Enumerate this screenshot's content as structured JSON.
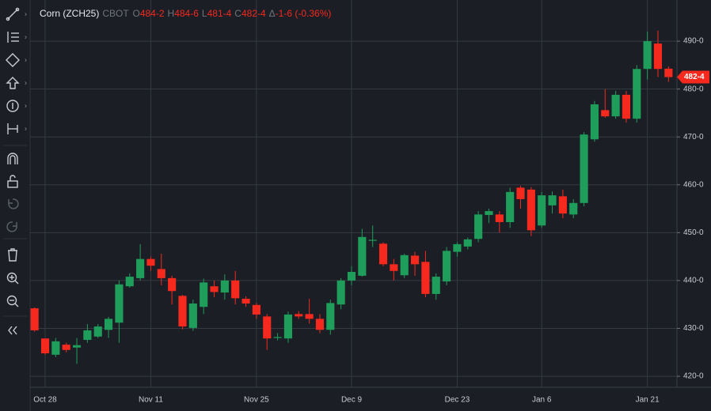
{
  "chart_data": {
    "type": "candlestick",
    "symbol": "Corn (ZCH25)",
    "exchange": "CBOT",
    "ohlc_legend": [
      {
        "label": "O",
        "value": "484-2"
      },
      {
        "label": "H",
        "value": "484-6"
      },
      {
        "label": "L",
        "value": "481-4"
      },
      {
        "label": "C",
        "value": "482-4"
      },
      {
        "label": "Δ",
        "value": "-1-6 (-0.36%)"
      }
    ],
    "categories": [
      null,
      "Oct 28",
      null,
      null,
      null,
      null,
      null,
      null,
      null,
      null,
      null,
      "Nov 11",
      null,
      null,
      null,
      null,
      null,
      null,
      null,
      null,
      null,
      "Nov 25",
      null,
      null,
      null,
      null,
      null,
      null,
      null,
      null,
      "Dec 9",
      null,
      null,
      null,
      null,
      null,
      null,
      null,
      null,
      null,
      "Dec 23",
      null,
      null,
      null,
      null,
      null,
      null,
      null,
      "Jan 6",
      null,
      null,
      null,
      null,
      null,
      null,
      null,
      null,
      null,
      "Jan 21",
      null,
      null
    ],
    "open": [
      434.2,
      427.9,
      424.5,
      426.6,
      426,
      427.6,
      428.3,
      429.7,
      431.2,
      438.8,
      440.5,
      444.5,
      442.4,
      440.5,
      436.8,
      430.1,
      434.5,
      438.8,
      437.5,
      440,
      436.2,
      434.9,
      432.5,
      428,
      427.9,
      433,
      433,
      432,
      429.7,
      435,
      440,
      441,
      448.3,
      447.7,
      443.4,
      441.1,
      445.2,
      443.9,
      437.2,
      439.8,
      446,
      447.1,
      448.7,
      453.7,
      453.8,
      452.2,
      459.4,
      459,
      451.5,
      455.7,
      457.6,
      453.8,
      456.2,
      469.5,
      475.6,
      474.3,
      478.8,
      473.8,
      484.2,
      489.5,
      484.25
    ],
    "high": [
      434.4,
      427.5,
      428,
      427,
      428,
      430.9,
      430.9,
      432.4,
      440,
      441.5,
      447.6,
      445,
      445.6,
      441,
      437,
      436,
      440.4,
      440,
      441.3,
      442,
      436.7,
      435.3,
      433,
      429,
      433.5,
      433.6,
      436.2,
      433,
      436,
      440.5,
      443,
      450.8,
      451.5,
      448,
      444.5,
      445.6,
      446,
      446.2,
      441.5,
      447,
      448,
      449,
      454.5,
      455,
      454.5,
      459.4,
      459.8,
      459.5,
      458.5,
      458.6,
      459,
      457,
      471,
      477.5,
      480,
      479.6,
      479.6,
      485,
      492,
      492.2,
      484.75
    ],
    "low": [
      429.3,
      424.5,
      424,
      425,
      422.6,
      427,
      428,
      428,
      427,
      438.5,
      440,
      442,
      439,
      435,
      429.8,
      429.5,
      433,
      436.5,
      436,
      435,
      434.5,
      432,
      425.5,
      427.5,
      427,
      432,
      431,
      429,
      428.7,
      434,
      439,
      440.8,
      447,
      443,
      440,
      440.5,
      441,
      436.5,
      436,
      439,
      445,
      446.5,
      448,
      452,
      450,
      451,
      455,
      449.3,
      451,
      454,
      453,
      453,
      455.5,
      469,
      474,
      473.8,
      473,
      473,
      482,
      482.5,
      481.5
    ],
    "close": [
      429.6,
      424.8,
      427.3,
      425.5,
      426.5,
      429.6,
      430.4,
      432,
      439.2,
      440.8,
      444.5,
      443.1,
      440.5,
      437.8,
      430.4,
      435.2,
      439.6,
      437.6,
      440,
      436.3,
      435.2,
      432.9,
      427.9,
      428.2,
      432.9,
      432.5,
      432,
      429.7,
      435.3,
      440,
      441.8,
      449.1,
      448.5,
      443.4,
      442,
      445.3,
      443.4,
      437.2,
      440.8,
      446.2,
      447.6,
      448.6,
      453.8,
      454.5,
      452.2,
      458.5,
      457,
      450.5,
      457.8,
      457.8,
      454,
      456.2,
      470.5,
      476.8,
      474.3,
      478.8,
      473.8,
      484.2,
      490,
      484.2,
      482.5
    ],
    "up_color": "#1f9e5b",
    "down_color": "#f5291e",
    "ylim": [
      417.7,
      498.6
    ],
    "yticks": [
      {
        "value": 420,
        "label": "420-0"
      },
      {
        "value": 430,
        "label": "430-0"
      },
      {
        "value": 440,
        "label": "440-0"
      },
      {
        "value": 450,
        "label": "450-0"
      },
      {
        "value": 460,
        "label": "460-0"
      },
      {
        "value": 470,
        "label": "470-0"
      },
      {
        "value": 480,
        "label": "480-0"
      },
      {
        "value": 490,
        "label": "490-0"
      }
    ],
    "last_price": {
      "value": 482.5,
      "label": "482-4"
    },
    "grid": true
  }
}
